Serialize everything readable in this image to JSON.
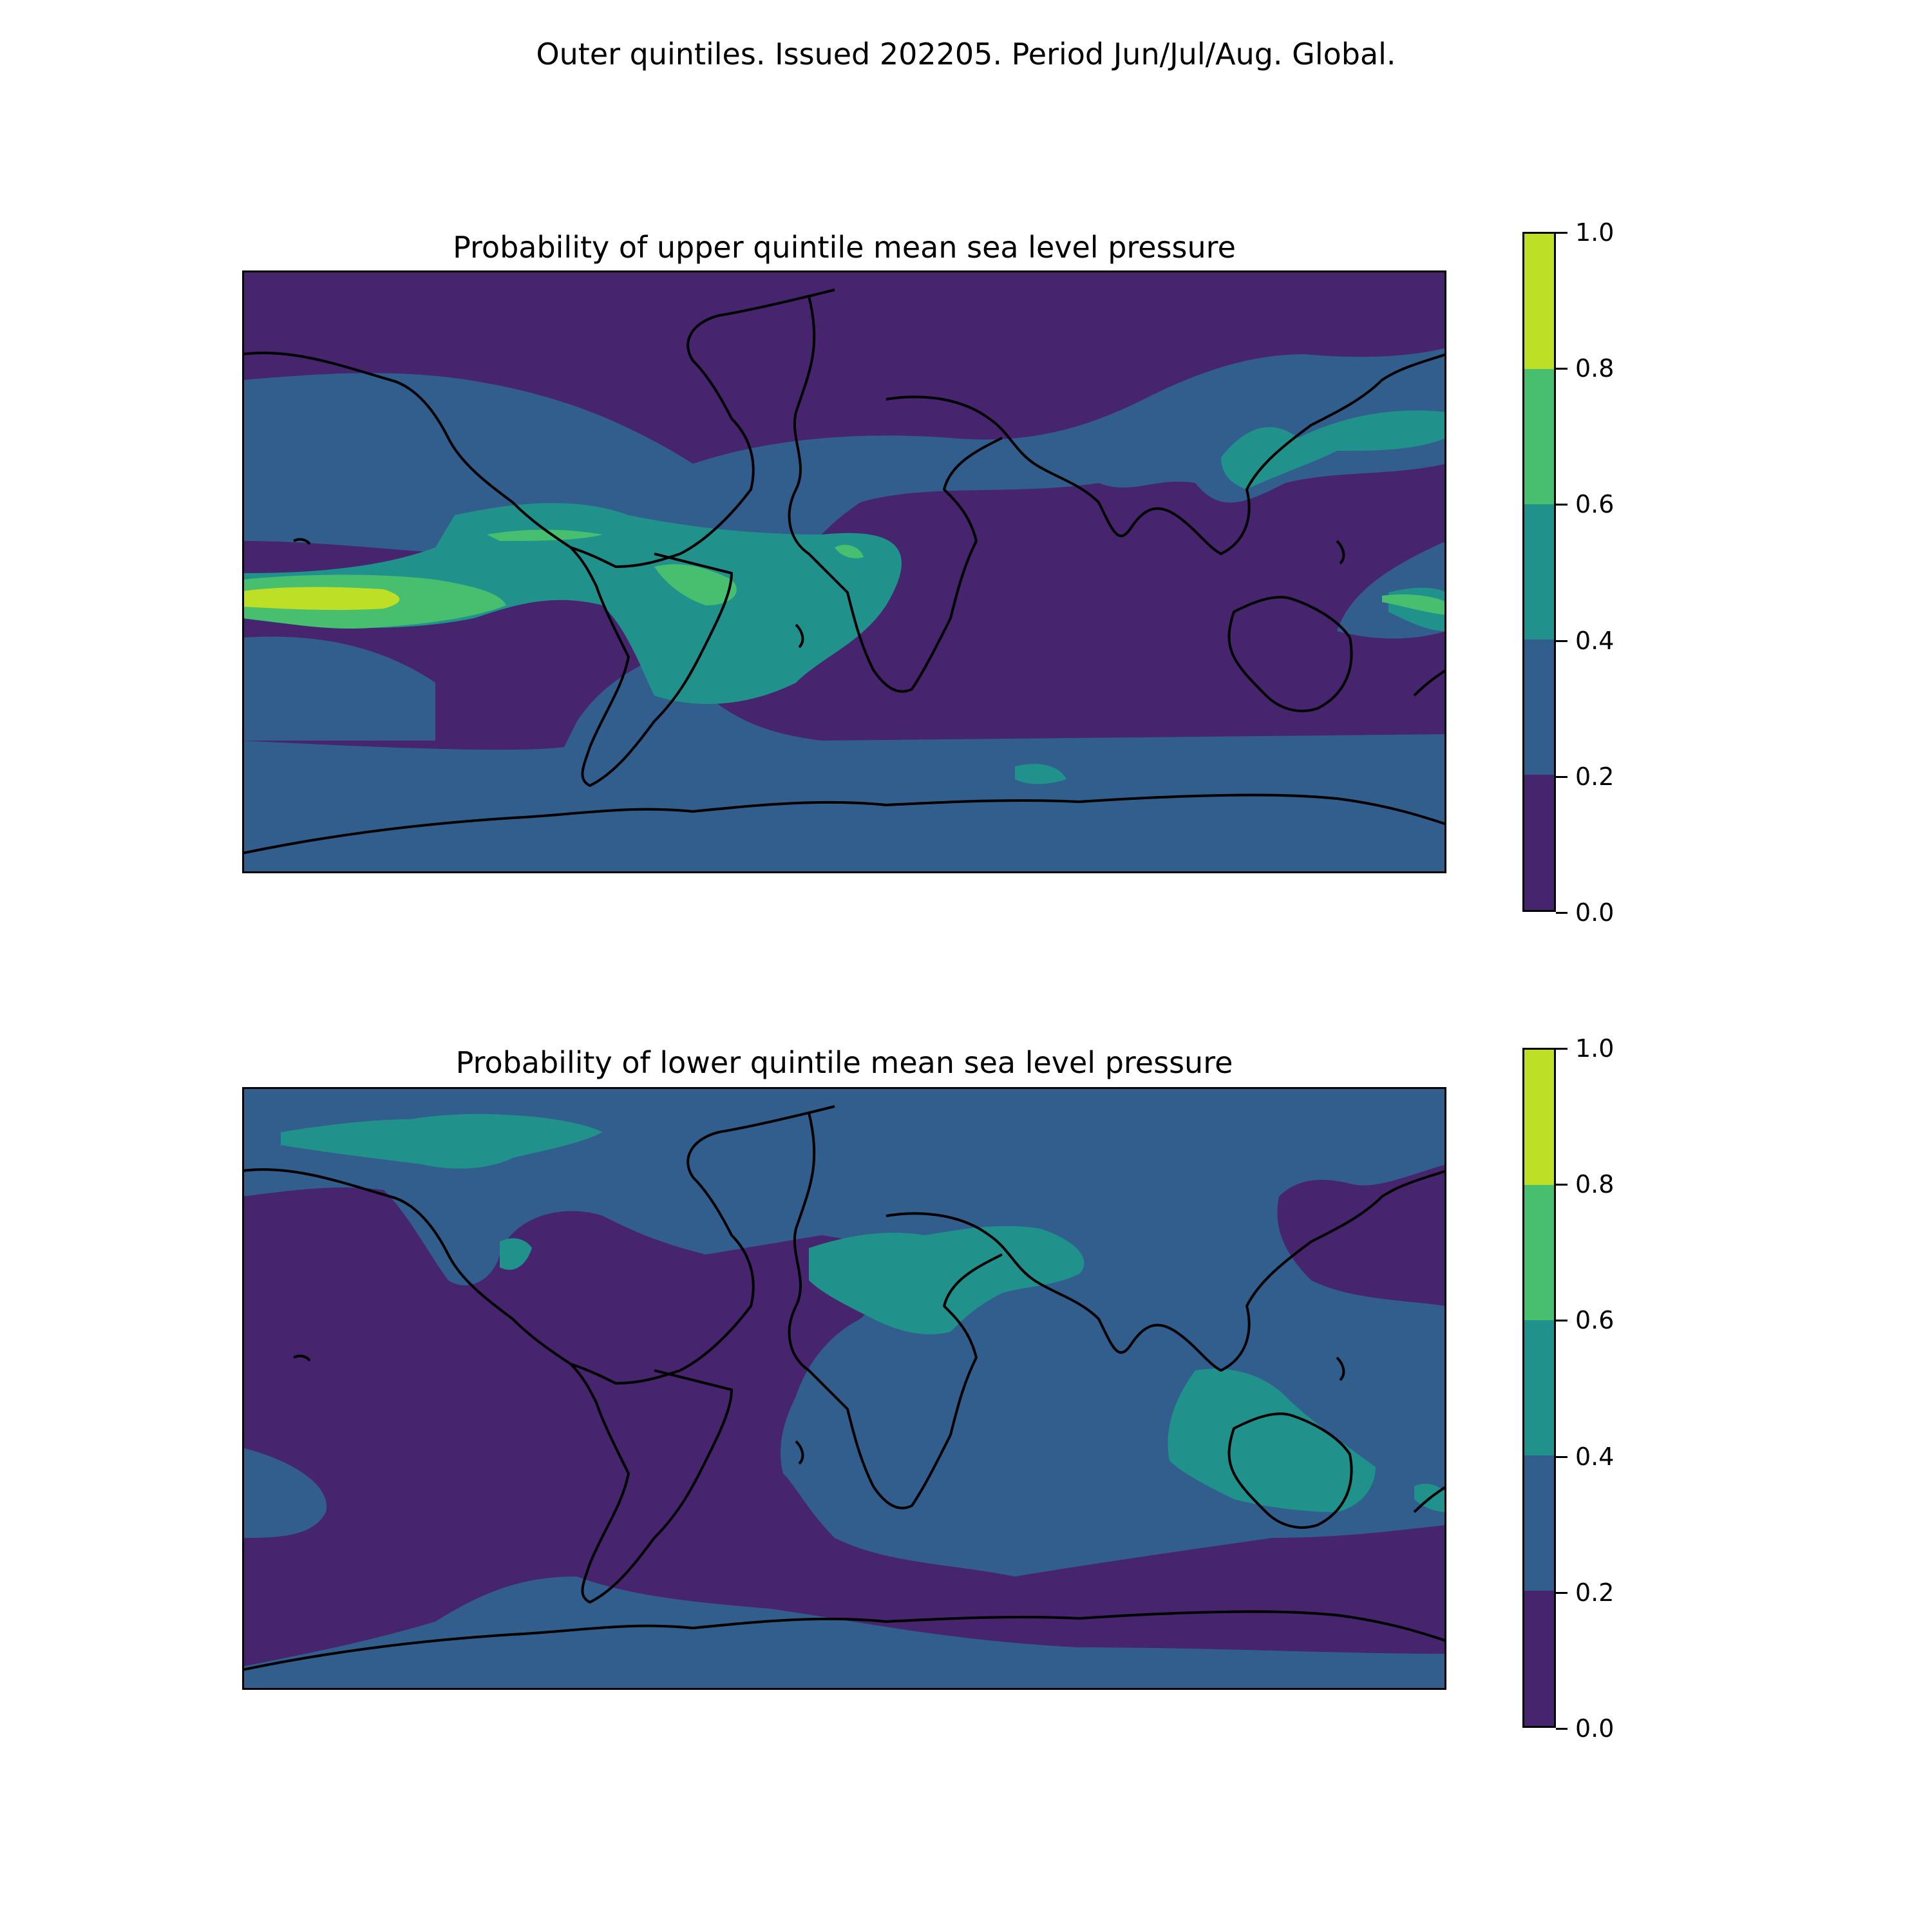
{
  "figure": {
    "suptitle": "Outer quintiles. Issued 202205. Period Jun/Jul/Aug. Global."
  },
  "colorbar": {
    "ticks": [
      "0.0",
      "0.2",
      "0.4",
      "0.6",
      "0.8",
      "1.0"
    ],
    "levels": [
      0.0,
      0.2,
      0.4,
      0.6,
      0.8,
      1.0
    ],
    "colors": [
      "#46246e",
      "#315e8c",
      "#21918c",
      "#47bf6e",
      "#bddf26"
    ]
  },
  "colors": {
    "coastline": "#000000",
    "axes_frame": "#000000"
  },
  "chart_data": [
    {
      "type": "heatmap",
      "title": "Probability of upper quintile mean sea level pressure",
      "projection": "PlateCarree, global",
      "colorbar_range": [
        0.0,
        1.0
      ],
      "colorbar_bins": [
        0.0,
        0.2,
        0.4,
        0.6,
        0.8,
        1.0
      ],
      "notable_regions": [
        {
          "region": "central equatorial Pacific",
          "range": [
            0.8,
            1.0
          ]
        },
        {
          "region": "tropical South America / equatorial Atlantic",
          "range": [
            0.4,
            0.8
          ]
        },
        {
          "region": "subtropical South Atlantic",
          "range": [
            0.4,
            0.6
          ]
        },
        {
          "region": "western North Pacific / East Asia",
          "range": [
            0.4,
            0.6
          ]
        },
        {
          "region": "Arctic and northern high latitudes",
          "range": [
            0.0,
            0.2
          ]
        },
        {
          "region": "Indian Ocean / Africa / Australia",
          "range": [
            0.0,
            0.2
          ]
        },
        {
          "region": "Southern Ocean belt",
          "range": [
            0.2,
            0.4
          ]
        }
      ]
    },
    {
      "type": "heatmap",
      "title": "Probability of lower quintile mean sea level pressure",
      "projection": "PlateCarree, global",
      "colorbar_range": [
        0.0,
        1.0
      ],
      "colorbar_bins": [
        0.0,
        0.2,
        0.4,
        0.6,
        0.8,
        1.0
      ],
      "notable_regions": [
        {
          "region": "Greenland / Arctic",
          "range": [
            0.4,
            0.6
          ]
        },
        {
          "region": "Middle East / Arabian Peninsula / Central Asia",
          "range": [
            0.4,
            0.6
          ]
        },
        {
          "region": "Australia and Maritime Continent",
          "range": [
            0.4,
            0.6
          ]
        },
        {
          "region": "Pacific and Atlantic Oceans",
          "range": [
            0.0,
            0.2
          ]
        },
        {
          "region": "Antarctica",
          "range": [
            0.2,
            0.4
          ]
        },
        {
          "region": "Southern Ocean south of Indian Ocean",
          "range": [
            0.0,
            0.2
          ]
        }
      ]
    }
  ]
}
